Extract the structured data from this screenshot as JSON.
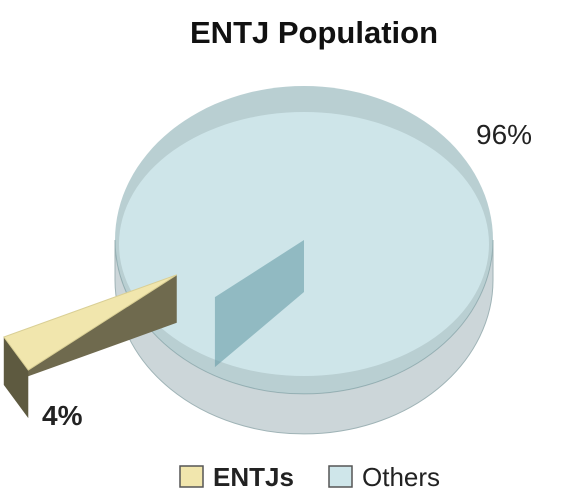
{
  "chart_data": {
    "type": "pie",
    "title": "ENTJ Population",
    "slices": [
      {
        "label": "ENTJs",
        "value": 4,
        "display": "4%",
        "color": "#f1e6ad",
        "side": "#6f6a4e",
        "exploded": true
      },
      {
        "label": "Others",
        "value": 96,
        "display": "96%",
        "color": "#cfe6ea",
        "side": "#7fa7ad"
      }
    ],
    "legend": {
      "placement": "bottom"
    },
    "style": "3d-exploded"
  }
}
